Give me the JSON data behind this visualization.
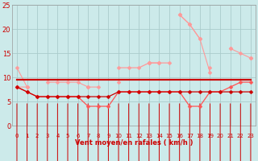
{
  "x": [
    0,
    1,
    2,
    3,
    4,
    5,
    6,
    7,
    8,
    9,
    10,
    11,
    12,
    13,
    14,
    15,
    16,
    17,
    18,
    19,
    20,
    21,
    22,
    23
  ],
  "line_gust1": [
    12,
    8,
    null,
    null,
    null,
    6,
    6,
    null,
    null,
    null,
    null,
    null,
    null,
    13,
    null,
    null,
    23,
    21,
    18,
    null,
    null,
    16,
    15,
    14
  ],
  "line_gust2": [
    8,
    8,
    null,
    9,
    9,
    9,
    9,
    8,
    8,
    null,
    9,
    null,
    null,
    13,
    13,
    null,
    23,
    21,
    18,
    11,
    null,
    16,
    null,
    14
  ],
  "line_mid": [
    null,
    null,
    null,
    null,
    null,
    null,
    null,
    8,
    null,
    null,
    12,
    12,
    12,
    13,
    13,
    13,
    null,
    null,
    null,
    12,
    null,
    null,
    null,
    null
  ],
  "line_mean1": [
    8,
    7,
    6,
    6,
    6,
    6,
    6,
    4,
    4,
    4,
    7,
    7,
    7,
    7,
    7,
    7,
    7,
    4,
    4,
    7,
    7,
    8,
    9,
    9
  ],
  "line_mean2": [
    8,
    7,
    6,
    6,
    6,
    6,
    6,
    6,
    6,
    6,
    7,
    7,
    7,
    7,
    7,
    7,
    7,
    7,
    7,
    7,
    7,
    7,
    7,
    7
  ],
  "line_flat": [
    9.5,
    9.5,
    9.5,
    9.5,
    9.5,
    9.5,
    9.5,
    9.5,
    9.5,
    9.5,
    9.5,
    9.5,
    9.5,
    9.5,
    9.5,
    9.5,
    9.5,
    9.5,
    9.5,
    9.5,
    9.5,
    9.5,
    9.5,
    9.5
  ],
  "bg_color": "#cceaea",
  "grid_color": "#aacccc",
  "color_light": "#ff9999",
  "color_medium": "#ff5555",
  "color_dark": "#cc0000",
  "xlabel": "Vent moyen/en rafales ( km/h )",
  "ylim": [
    0,
    25
  ],
  "xlim": [
    -0.5,
    23.5
  ],
  "yticks": [
    0,
    5,
    10,
    15,
    20,
    25
  ],
  "xticks": [
    0,
    1,
    2,
    3,
    4,
    5,
    6,
    7,
    8,
    9,
    10,
    11,
    12,
    13,
    14,
    15,
    16,
    17,
    18,
    19,
    20,
    21,
    22,
    23
  ]
}
